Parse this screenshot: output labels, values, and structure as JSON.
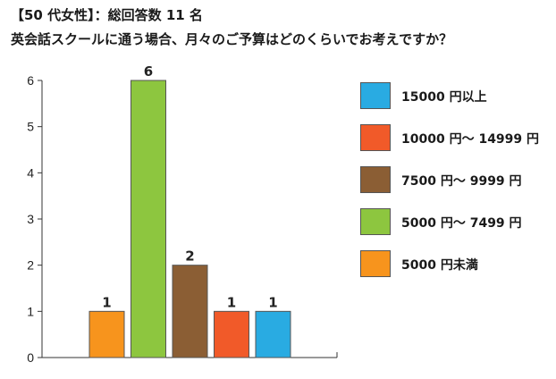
{
  "header": {
    "line1": "【50 代女性】：総回答数 11 名",
    "line2": "英会話スクールに通う場合、月々のご予算はどのくらいでお考えですか？"
  },
  "chart_data": {
    "type": "bar",
    "title": "英会話スクールに通う場合、月々のご予算はどのくらいでお考えですか？",
    "xlabel": "",
    "ylabel": "",
    "ylim": [
      0,
      6
    ],
    "yticks": [
      "0",
      "1",
      "2",
      "3",
      "4",
      "5",
      "6"
    ],
    "grid": false,
    "legend_position": "right",
    "bars": [
      {
        "category": "5000 円未満",
        "value": 1,
        "label": "1",
        "color": "#F7941D"
      },
      {
        "category": "5000 円～ 7499 円",
        "value": 6,
        "label": "6",
        "color": "#8DC63F"
      },
      {
        "category": "7500 円～ 9999 円",
        "value": 2,
        "label": "2",
        "color": "#8B5E34"
      },
      {
        "category": "10000 円～ 14999 円",
        "value": 1,
        "label": "1",
        "color": "#F15A29"
      },
      {
        "category": "15000 円以上",
        "value": 1,
        "label": "1",
        "color": "#29ABE2"
      }
    ],
    "legend": [
      {
        "label": "15000 円以上",
        "color": "#29ABE2"
      },
      {
        "label": "10000 円～ 14999 円",
        "color": "#F15A29"
      },
      {
        "label": "7500 円～ 9999 円",
        "color": "#8B5E34"
      },
      {
        "label": "5000 円～ 7499 円",
        "color": "#8DC63F"
      },
      {
        "label": "5000 円未満",
        "color": "#F7941D"
      }
    ]
  }
}
